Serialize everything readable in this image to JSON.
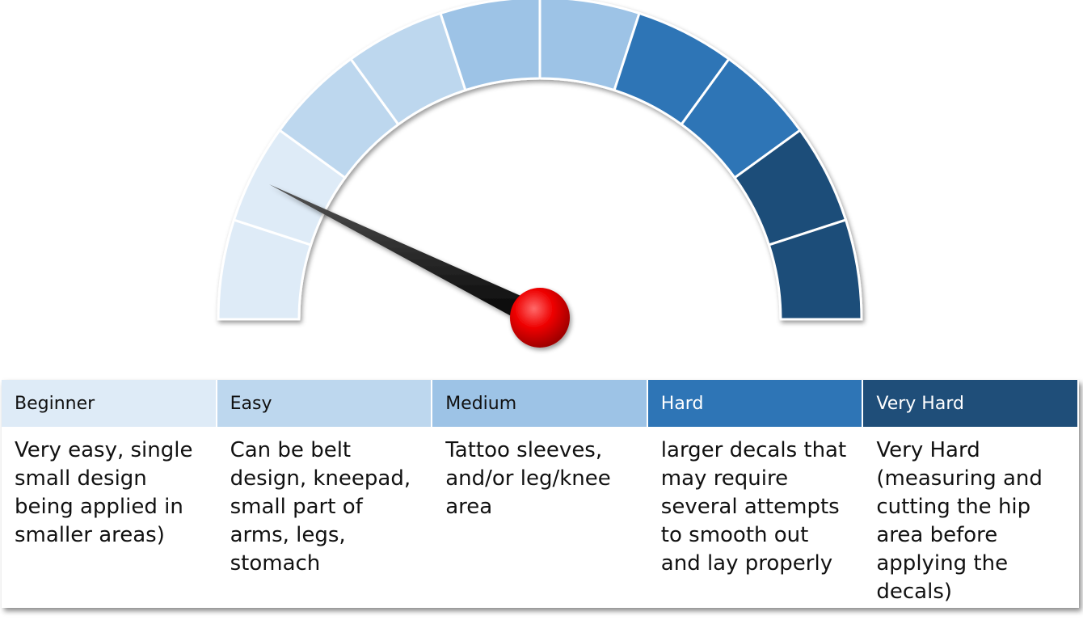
{
  "levels": [
    {
      "name": "Beginner",
      "description": "Very easy, single small design being applied in smaller areas)"
    },
    {
      "name": "Easy",
      "description": "Can be belt design, kneepad, small part of arms, legs, stomach"
    },
    {
      "name": "Medium",
      "description": "Tattoo sleeves, and/or leg/knee area"
    },
    {
      "name": "Hard",
      "description": "larger decals that may require several attempts to smooth out and lay properly"
    },
    {
      "name": "Very Hard",
      "description": "Very Hard (measuring and cutting the hip area before applying the decals)"
    }
  ]
}
